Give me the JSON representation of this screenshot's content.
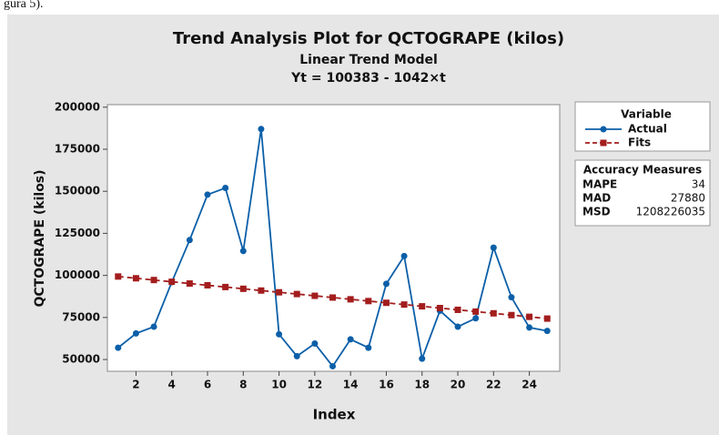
{
  "caption": "gura 5).",
  "chart_data": {
    "type": "line",
    "title": "Trend Analysis Plot for QCTOGRAPE (kilos)",
    "subtitle": "Linear Trend Model",
    "equation": "Yt = 100383 - 1042×t",
    "xlabel": "Index",
    "ylabel": "QCTOGRAPE (kilos)",
    "x": [
      1,
      2,
      3,
      4,
      5,
      6,
      7,
      8,
      9,
      10,
      11,
      12,
      13,
      14,
      15,
      16,
      17,
      18,
      19,
      20,
      21,
      22,
      23,
      24,
      25
    ],
    "series": [
      {
        "name": "Actual",
        "color": "#0b5fa8",
        "marker": "circle",
        "dashed": false,
        "values": [
          57000,
          65500,
          69500,
          96000,
          121000,
          148000,
          152000,
          114500,
          187000,
          65000,
          52000,
          59500,
          46000,
          62000,
          57000,
          95000,
          111500,
          50500,
          79000,
          69500,
          74500,
          116500,
          87000,
          69000,
          67000
        ]
      },
      {
        "name": "Fits",
        "color": "#a31d1d",
        "marker": "square",
        "dashed": true,
        "values": [
          99341,
          98299,
          97257,
          96215,
          95173,
          94131,
          93089,
          92047,
          91005,
          89963,
          88921,
          87879,
          86837,
          85795,
          84753,
          83711,
          82669,
          81627,
          80585,
          79543,
          78501,
          77459,
          76417,
          75375,
          74333
        ]
      }
    ],
    "legend_title": "Variable",
    "xlim": [
      0.4,
      25.7
    ],
    "xticks": [
      2,
      4,
      6,
      8,
      10,
      12,
      14,
      16,
      18,
      20,
      22,
      24
    ],
    "ylim": [
      43000,
      201500
    ],
    "yticks": [
      50000,
      75000,
      100000,
      125000,
      150000,
      175000,
      200000
    ],
    "grid": false,
    "accuracy": {
      "title": "Accuracy Measures",
      "rows": [
        [
          "MAPE",
          34
        ],
        [
          "MAD",
          27880
        ],
        [
          "MSD",
          1208226035
        ]
      ]
    }
  }
}
